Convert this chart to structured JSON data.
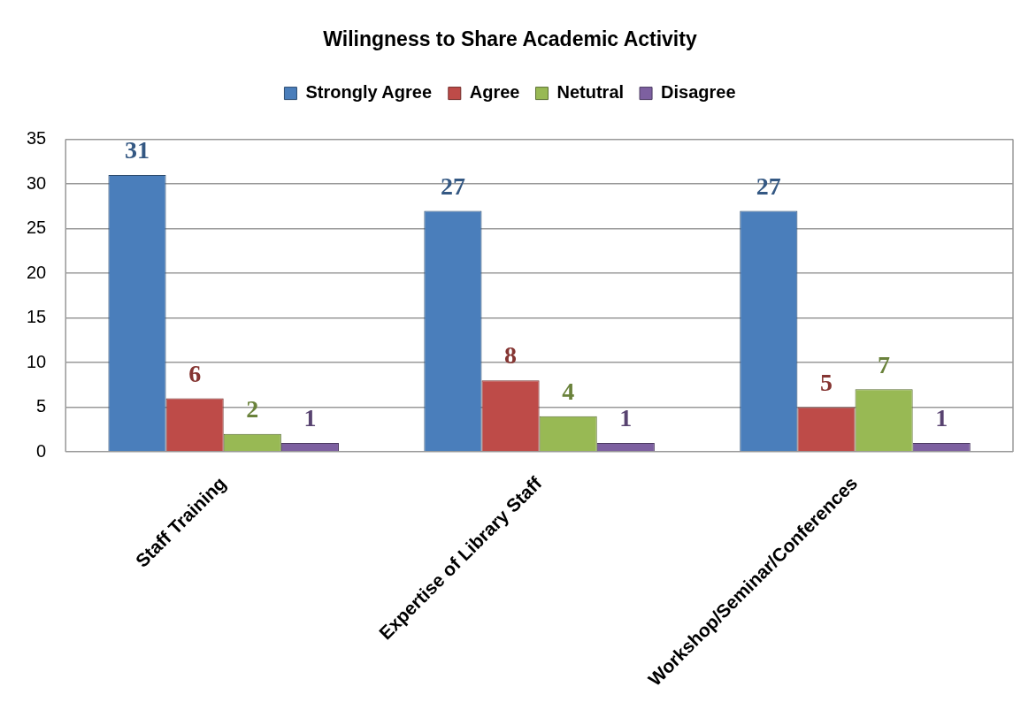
{
  "chart_data": {
    "type": "bar",
    "title": "Wilingness to Share Academic Activity",
    "categories": [
      "Staff Training",
      "Expertise of Library Staff",
      "Workshop/Seminar/Conferences"
    ],
    "series": [
      {
        "name": "Strongly Agree",
        "color": "#4a7ebb",
        "values": [
          31,
          27,
          27
        ]
      },
      {
        "name": "Agree",
        "color": "#be4b48",
        "values": [
          6,
          8,
          5
        ]
      },
      {
        "name": "Netutral",
        "color": "#98b954",
        "values": [
          2,
          4,
          7
        ]
      },
      {
        "name": "Disagree",
        "color": "#7d60a0",
        "values": [
          1,
          1,
          1
        ]
      }
    ],
    "ylim": [
      0,
      35
    ],
    "yticks": [
      0,
      5,
      10,
      15,
      20,
      25,
      30,
      35
    ],
    "grid": "y",
    "legend": "top",
    "data_labels": true
  }
}
